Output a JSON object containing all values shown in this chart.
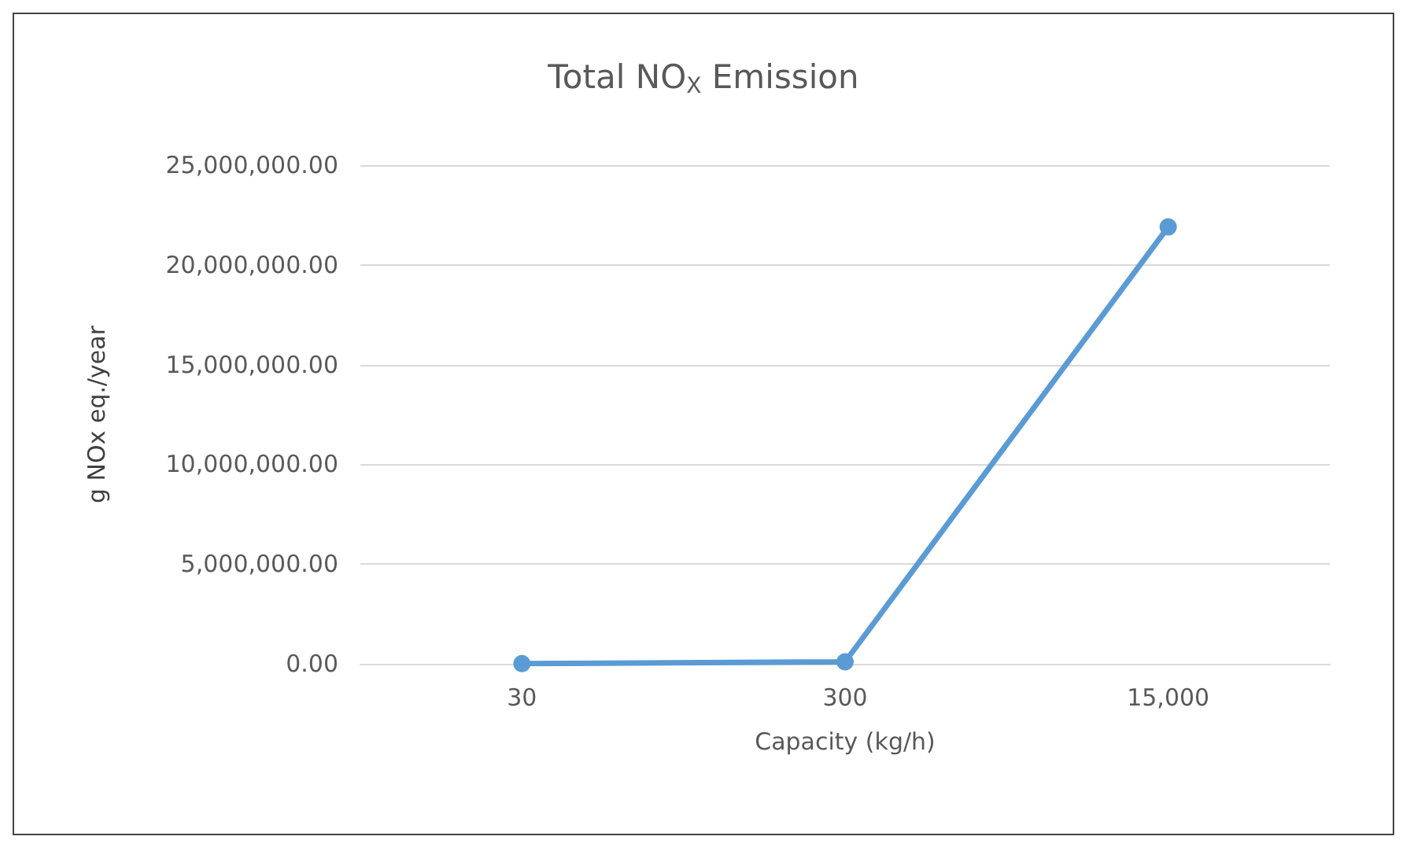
{
  "chart_data": {
    "type": "line",
    "title": "Total NO$_{X}$ Emission",
    "xlabel": "Capacity (kg/h)",
    "ylabel": "g NOx eq./year",
    "categories": [
      "30",
      "300",
      "15,000"
    ],
    "series": [
      {
        "color": "#5b9bd5",
        "values": [
          10000,
          100000,
          21900000
        ]
      }
    ],
    "ylim": [
      0,
      25000000
    ],
    "yticks": [
      {
        "value": 0,
        "label": "0.00"
      },
      {
        "value": 5000000,
        "label": "5,000,000.00"
      },
      {
        "value": 10000000,
        "label": "10,000,000.00"
      },
      {
        "value": 15000000,
        "label": "15,000,000.00"
      },
      {
        "value": 20000000,
        "label": "20,000,000.00"
      },
      {
        "value": 25000000,
        "label": "25,000,000.00"
      }
    ],
    "grid": "y",
    "marker": "circle",
    "line_style": "solid"
  }
}
